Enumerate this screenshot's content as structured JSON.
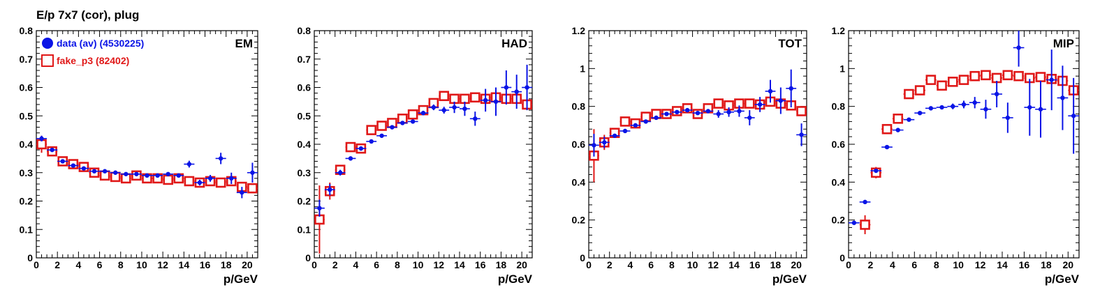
{
  "figure_title": "E/p 7x7 (cor), plug",
  "colors": {
    "data": "#0a14e6",
    "fake": "#e01818",
    "frame": "#000000"
  },
  "legend": [
    {
      "label": "data (av) (4530225)",
      "marker": "filled-circle",
      "color": "#0a14e6"
    },
    {
      "label": "fake_p3 (82402)",
      "marker": "open-square",
      "color": "#e01818"
    }
  ],
  "chart_data": [
    {
      "type": "scatter",
      "tag": "EM",
      "xlabel": "p/GeV",
      "ylabel": "",
      "xlim": [
        0,
        21
      ],
      "ylim": [
        0,
        0.8
      ],
      "x_ticks": [
        "0",
        "2",
        "4",
        "6",
        "8",
        "10",
        "12",
        "14",
        "16",
        "18",
        "20"
      ],
      "y_ticks": [
        "0",
        "0.1",
        "0.2",
        "0.3",
        "0.4",
        "0.5",
        "0.6",
        "0.7",
        "0.8"
      ],
      "series": [
        {
          "name": "data (av) (4530225)",
          "marker": "filled-circle",
          "x": [
            0.5,
            1.5,
            2.5,
            3.5,
            4.5,
            5.5,
            6.5,
            7.5,
            8.5,
            9.5,
            10.5,
            11.5,
            12.5,
            13.5,
            14.5,
            15.5,
            16.5,
            17.5,
            18.5,
            19.5,
            20.5
          ],
          "y": [
            0.42,
            0.38,
            0.34,
            0.325,
            0.315,
            0.305,
            0.305,
            0.3,
            0.295,
            0.295,
            0.29,
            0.29,
            0.295,
            0.29,
            0.33,
            0.265,
            0.28,
            0.35,
            0.28,
            0.23,
            0.3
          ],
          "err": [
            0.01,
            0.005,
            0.004,
            0.004,
            0.004,
            0.004,
            0.004,
            0.004,
            0.004,
            0.005,
            0.005,
            0.005,
            0.006,
            0.007,
            0.012,
            0.01,
            0.012,
            0.02,
            0.02,
            0.02,
            0.035
          ]
        },
        {
          "name": "fake_p3 (82402)",
          "marker": "open-square",
          "x": [
            0.5,
            1.5,
            2.5,
            3.5,
            4.5,
            5.5,
            6.5,
            7.5,
            8.5,
            9.5,
            10.5,
            11.5,
            12.5,
            13.5,
            14.5,
            15.5,
            16.5,
            17.5,
            18.5,
            19.5,
            20.5
          ],
          "y": [
            0.4,
            0.375,
            0.34,
            0.33,
            0.32,
            0.3,
            0.29,
            0.285,
            0.28,
            0.29,
            0.28,
            0.28,
            0.275,
            0.28,
            0.27,
            0.265,
            0.27,
            0.265,
            0.27,
            0.25,
            0.245
          ],
          "err": [
            0.03,
            0.015,
            0.01,
            0.008,
            0.008,
            0.008,
            0.008,
            0.008,
            0.008,
            0.008,
            0.008,
            0.008,
            0.008,
            0.008,
            0.008,
            0.008,
            0.008,
            0.008,
            0.01,
            0.01,
            0.01
          ]
        }
      ]
    },
    {
      "type": "scatter",
      "tag": "HAD",
      "xlabel": "p/GeV",
      "ylabel": "",
      "xlim": [
        0,
        21
      ],
      "ylim": [
        0,
        0.8
      ],
      "x_ticks": [
        "0",
        "2",
        "4",
        "6",
        "8",
        "10",
        "12",
        "14",
        "16",
        "18",
        "20"
      ],
      "y_ticks": [
        "0",
        "0.1",
        "0.2",
        "0.3",
        "0.4",
        "0.5",
        "0.6",
        "0.7",
        "0.8"
      ],
      "series": [
        {
          "name": "data (av) (4530225)",
          "marker": "filled-circle",
          "x": [
            0.5,
            1.5,
            2.5,
            3.5,
            4.5,
            5.5,
            6.5,
            7.5,
            8.5,
            9.5,
            10.5,
            11.5,
            12.5,
            13.5,
            14.5,
            15.5,
            16.5,
            17.5,
            18.5,
            19.5,
            20.5
          ],
          "y": [
            0.175,
            0.24,
            0.3,
            0.35,
            0.385,
            0.41,
            0.43,
            0.46,
            0.475,
            0.48,
            0.51,
            0.53,
            0.52,
            0.53,
            0.525,
            0.49,
            0.555,
            0.55,
            0.6,
            0.585,
            0.6
          ],
          "err": [
            0.03,
            0.02,
            0.01,
            0.005,
            0.005,
            0.005,
            0.005,
            0.005,
            0.006,
            0.007,
            0.008,
            0.01,
            0.012,
            0.02,
            0.025,
            0.025,
            0.04,
            0.05,
            0.06,
            0.06,
            0.08
          ]
        },
        {
          "name": "fake_p3 (82402)",
          "marker": "open-square",
          "x": [
            0.5,
            1.5,
            2.5,
            3.5,
            4.5,
            5.5,
            6.5,
            7.5,
            8.5,
            9.5,
            10.5,
            11.5,
            12.5,
            13.5,
            14.5,
            15.5,
            16.5,
            17.5,
            18.5,
            19.5,
            20.5
          ],
          "y": [
            0.135,
            0.235,
            0.31,
            0.39,
            0.385,
            0.45,
            0.465,
            0.475,
            0.49,
            0.505,
            0.52,
            0.545,
            0.57,
            0.56,
            0.56,
            0.565,
            0.56,
            0.565,
            0.56,
            0.56,
            0.54
          ],
          "err": [
            0.12,
            0.03,
            0.015,
            0.01,
            0.01,
            0.01,
            0.01,
            0.01,
            0.01,
            0.01,
            0.01,
            0.01,
            0.01,
            0.01,
            0.01,
            0.01,
            0.01,
            0.01,
            0.01,
            0.01,
            0.01
          ]
        }
      ]
    },
    {
      "type": "scatter",
      "tag": "TOT",
      "xlabel": "p/GeV",
      "ylabel": "",
      "xlim": [
        0,
        21
      ],
      "ylim": [
        0,
        1.2
      ],
      "x_ticks": [
        "0",
        "2",
        "4",
        "6",
        "8",
        "10",
        "12",
        "14",
        "16",
        "18",
        "20"
      ],
      "y_ticks": [
        "0",
        "0.2",
        "0.4",
        "0.6",
        "0.8",
        "1",
        "1.2"
      ],
      "series": [
        {
          "name": "data (av) (4530225)",
          "marker": "filled-circle",
          "x": [
            0.5,
            1.5,
            2.5,
            3.5,
            4.5,
            5.5,
            6.5,
            7.5,
            8.5,
            9.5,
            10.5,
            11.5,
            12.5,
            13.5,
            14.5,
            15.5,
            16.5,
            17.5,
            18.5,
            19.5,
            20.5
          ],
          "y": [
            0.595,
            0.61,
            0.645,
            0.67,
            0.7,
            0.72,
            0.74,
            0.76,
            0.77,
            0.78,
            0.765,
            0.775,
            0.76,
            0.77,
            0.775,
            0.74,
            0.81,
            0.88,
            0.83,
            0.895,
            0.65
          ],
          "err": [
            0.06,
            0.03,
            0.01,
            0.006,
            0.006,
            0.006,
            0.006,
            0.006,
            0.006,
            0.008,
            0.01,
            0.01,
            0.02,
            0.025,
            0.03,
            0.04,
            0.04,
            0.06,
            0.07,
            0.1,
            0.06
          ]
        },
        {
          "name": "fake_p3 (82402)",
          "marker": "open-square",
          "x": [
            0.5,
            1.5,
            2.5,
            3.5,
            4.5,
            5.5,
            6.5,
            7.5,
            8.5,
            9.5,
            10.5,
            11.5,
            12.5,
            13.5,
            14.5,
            15.5,
            16.5,
            17.5,
            18.5,
            19.5,
            20.5
          ],
          "y": [
            0.54,
            0.61,
            0.66,
            0.72,
            0.71,
            0.745,
            0.76,
            0.76,
            0.775,
            0.79,
            0.76,
            0.79,
            0.815,
            0.805,
            0.815,
            0.815,
            0.81,
            0.825,
            0.815,
            0.805,
            0.775
          ],
          "err": [
            0.14,
            0.04,
            0.02,
            0.015,
            0.012,
            0.012,
            0.012,
            0.012,
            0.012,
            0.012,
            0.012,
            0.012,
            0.012,
            0.012,
            0.012,
            0.012,
            0.012,
            0.012,
            0.015,
            0.015,
            0.015
          ]
        }
      ]
    },
    {
      "type": "scatter",
      "tag": "MIP",
      "xlabel": "p/GeV",
      "ylabel": "",
      "xlim": [
        0,
        21
      ],
      "ylim": [
        0,
        1.2
      ],
      "x_ticks": [
        "0",
        "2",
        "4",
        "6",
        "8",
        "10",
        "12",
        "14",
        "16",
        "18",
        "20"
      ],
      "y_ticks": [
        "0",
        "0.2",
        "0.4",
        "0.6",
        "0.8",
        "1",
        "1.2"
      ],
      "series": [
        {
          "name": "data (av) (4530225)",
          "marker": "filled-circle",
          "x": [
            0.5,
            1.5,
            2.5,
            3.5,
            4.5,
            5.5,
            6.5,
            7.5,
            8.5,
            9.5,
            10.5,
            11.5,
            12.5,
            13.5,
            14.5,
            15.5,
            16.5,
            17.5,
            18.5,
            19.5,
            20.5
          ],
          "y": [
            0.185,
            0.295,
            0.46,
            0.585,
            0.675,
            0.73,
            0.765,
            0.79,
            0.795,
            0.8,
            0.81,
            0.82,
            0.785,
            0.865,
            0.74,
            1.11,
            0.795,
            0.785,
            0.94,
            0.845,
            0.75
          ],
          "err": [
            0.01,
            0.008,
            0.006,
            0.005,
            0.005,
            0.005,
            0.006,
            0.008,
            0.01,
            0.015,
            0.02,
            0.03,
            0.05,
            0.07,
            0.08,
            0.1,
            0.15,
            0.15,
            0.16,
            0.17,
            0.2
          ]
        },
        {
          "name": "fake_p3 (82402)",
          "marker": "open-square",
          "x": [
            0.5,
            1.5,
            2.5,
            3.5,
            4.5,
            5.5,
            6.5,
            7.5,
            8.5,
            9.5,
            10.5,
            11.5,
            12.5,
            13.5,
            14.5,
            15.5,
            16.5,
            17.5,
            18.5,
            19.5,
            20.5
          ],
          "y": [
            null,
            0.175,
            0.45,
            0.68,
            0.735,
            0.865,
            0.885,
            0.94,
            0.91,
            0.93,
            0.94,
            0.96,
            0.965,
            0.95,
            0.965,
            0.96,
            0.95,
            0.955,
            0.945,
            0.935,
            0.885
          ],
          "err": [
            0,
            0.05,
            0.03,
            0.02,
            0.015,
            0.015,
            0.015,
            0.015,
            0.015,
            0.015,
            0.015,
            0.015,
            0.015,
            0.015,
            0.015,
            0.015,
            0.015,
            0.015,
            0.015,
            0.015,
            0.015
          ]
        }
      ]
    }
  ]
}
